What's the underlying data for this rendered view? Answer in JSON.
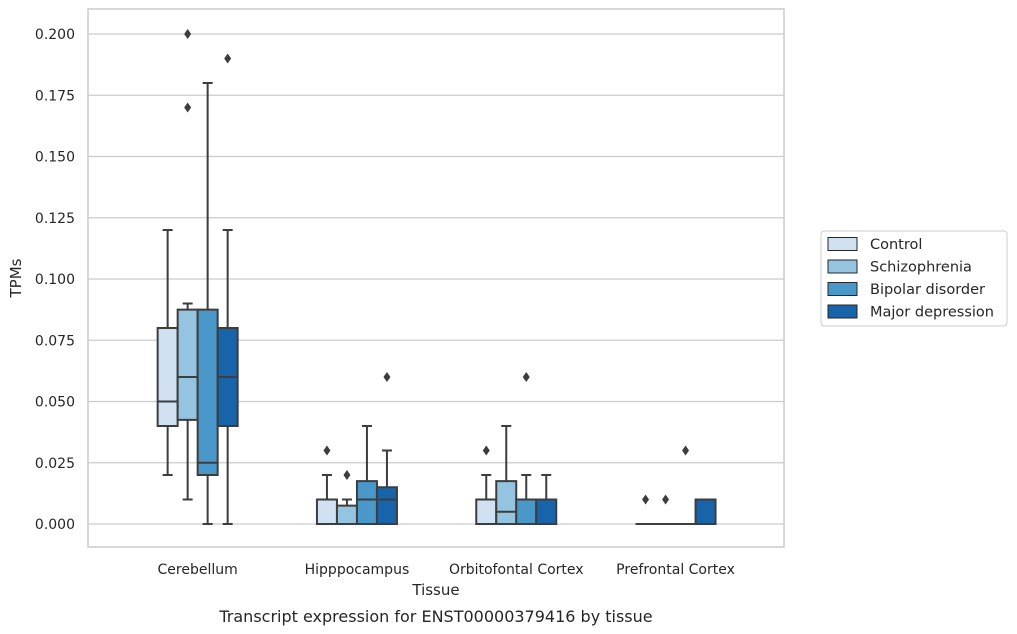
{
  "chart_data": {
    "type": "box",
    "xlabel": "Tissue",
    "ylabel": "TPMs",
    "caption": "Transcript expression for ENST00000379416 by tissue",
    "ylim": [
      -0.01,
      0.21
    ],
    "yticks": [
      "0.000",
      "0.025",
      "0.050",
      "0.075",
      "0.100",
      "0.125",
      "0.150",
      "0.175",
      "0.200"
    ],
    "grid": "horizontal",
    "legend_position": "right",
    "categories": [
      "Cerebellum",
      "Hipppocampus",
      "Orbitofontal Cortex",
      "Prefrontal Cortex"
    ],
    "series": [
      {
        "name": "Control",
        "color": "#d0e1f2",
        "boxes": [
          {
            "whislo": 0.02,
            "q1": 0.04,
            "med": 0.05,
            "q3": 0.08,
            "whishi": 0.12,
            "fliers": []
          },
          {
            "whislo": 0.0,
            "q1": 0.0,
            "med": 0.0,
            "q3": 0.01,
            "whishi": 0.02,
            "fliers": [
              0.03
            ]
          },
          {
            "whislo": 0.0,
            "q1": 0.0,
            "med": 0.0,
            "q3": 0.01,
            "whishi": 0.02,
            "fliers": [
              0.03
            ]
          },
          {
            "whislo": 0.0,
            "q1": 0.0,
            "med": 0.0,
            "q3": 0.0,
            "whishi": 0.0,
            "fliers": [
              0.01
            ]
          }
        ]
      },
      {
        "name": "Schizophrenia",
        "color": "#94c4df",
        "boxes": [
          {
            "whislo": 0.01,
            "q1": 0.0425,
            "med": 0.06,
            "q3": 0.0875,
            "whishi": 0.09,
            "fliers": [
              0.17,
              0.2
            ]
          },
          {
            "whislo": 0.0,
            "q1": 0.0,
            "med": 0.0,
            "q3": 0.0075,
            "whishi": 0.01,
            "fliers": [
              0.02
            ]
          },
          {
            "whislo": 0.0,
            "q1": 0.0,
            "med": 0.005,
            "q3": 0.0175,
            "whishi": 0.04,
            "fliers": []
          },
          {
            "whislo": 0.0,
            "q1": 0.0,
            "med": 0.0,
            "q3": 0.0,
            "whishi": 0.0,
            "fliers": [
              0.01
            ]
          }
        ]
      },
      {
        "name": "Bipolar disorder",
        "color": "#4a98c9",
        "boxes": [
          {
            "whislo": 0.0,
            "q1": 0.02,
            "med": 0.025,
            "q3": 0.0875,
            "whishi": 0.18,
            "fliers": []
          },
          {
            "whislo": 0.0,
            "q1": 0.0,
            "med": 0.01,
            "q3": 0.0175,
            "whishi": 0.04,
            "fliers": []
          },
          {
            "whislo": 0.0,
            "q1": 0.0,
            "med": 0.01,
            "q3": 0.01,
            "whishi": 0.02,
            "fliers": [
              0.06
            ]
          },
          {
            "whislo": 0.0,
            "q1": 0.0,
            "med": 0.0,
            "q3": 0.0,
            "whishi": 0.0,
            "fliers": [
              0.03
            ]
          }
        ]
      },
      {
        "name": "Major depression",
        "color": "#1764ab",
        "boxes": [
          {
            "whislo": 0.0,
            "q1": 0.04,
            "med": 0.06,
            "q3": 0.08,
            "whishi": 0.12,
            "fliers": [
              0.19
            ]
          },
          {
            "whislo": 0.0,
            "q1": 0.0,
            "med": 0.01,
            "q3": 0.015,
            "whishi": 0.03,
            "fliers": [
              0.06
            ]
          },
          {
            "whislo": 0.0,
            "q1": 0.0,
            "med": 0.01,
            "q3": 0.01,
            "whishi": 0.02,
            "fliers": []
          },
          {
            "whislo": 0.0,
            "q1": 0.0,
            "med": 0.0,
            "q3": 0.01,
            "whishi": 0.01,
            "fliers": []
          }
        ]
      }
    ]
  }
}
